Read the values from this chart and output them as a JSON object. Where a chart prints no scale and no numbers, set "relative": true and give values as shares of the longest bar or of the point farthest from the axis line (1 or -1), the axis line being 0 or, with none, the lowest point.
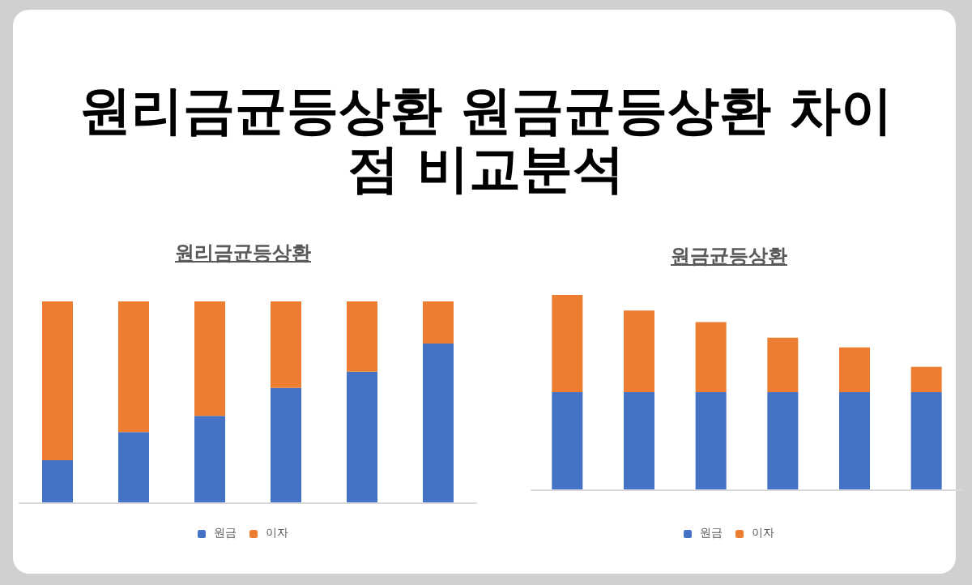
{
  "chart_data": [
    {
      "type": "bar",
      "title": "원리금균등상환 원금균등상환 차이점 비교분석",
      "subtitle": "원리금균등상환",
      "categories": [
        null,
        null,
        null,
        null,
        null,
        null
      ],
      "relative": true,
      "stacked": true,
      "legend": "bottom",
      "series": [
        {
          "name": "원금",
          "color": "#4472c4",
          "values": [
            0.21,
            0.35,
            0.43,
            0.57,
            0.65,
            0.79
          ]
        },
        {
          "name": "이자",
          "color": "#ed7d31",
          "values": [
            0.79,
            0.65,
            0.57,
            0.43,
            0.35,
            0.21
          ]
        }
      ]
    },
    {
      "type": "bar",
      "title": "원금균등상환",
      "categories": [
        null,
        null,
        null,
        null,
        null,
        null
      ],
      "relative": true,
      "stacked": true,
      "legend": "bottom",
      "series": [
        {
          "name": "원금",
          "color": "#4472c4",
          "values": [
            0.5,
            0.5,
            0.5,
            0.5,
            0.5,
            0.5
          ]
        },
        {
          "name": "이자",
          "color": "#ed7d31",
          "values": [
            0.5,
            0.42,
            0.36,
            0.28,
            0.23,
            0.13
          ]
        }
      ]
    }
  ]
}
